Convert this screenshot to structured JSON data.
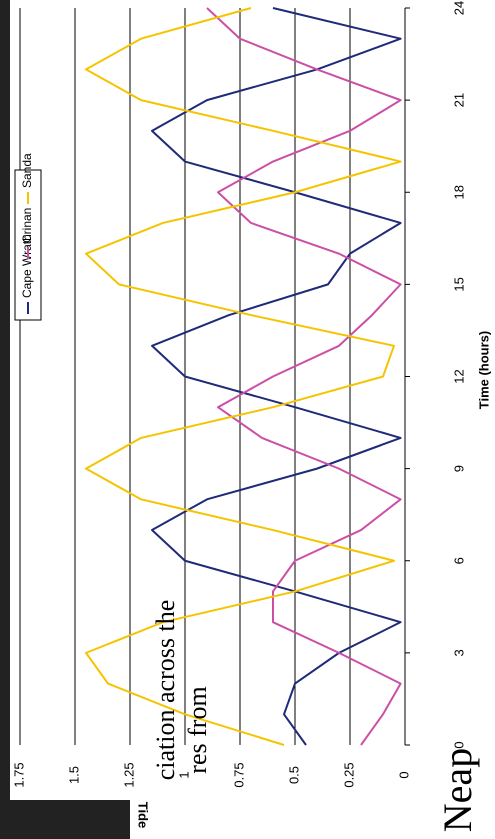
{
  "chart_data": {
    "type": "line",
    "x_label": "Time (hours)",
    "y_label": "Tide",
    "x": [
      0,
      1,
      2,
      3,
      4,
      5,
      6,
      7,
      8,
      9,
      10,
      11,
      12,
      13,
      14,
      15,
      16,
      17,
      18,
      19,
      20,
      21,
      22,
      23,
      24
    ],
    "xlim": [
      0,
      24
    ],
    "xticks": [
      0,
      3,
      6,
      9,
      12,
      15,
      18,
      21,
      24
    ],
    "ylim": [
      0,
      1.75
    ],
    "yticks": [
      0,
      0.25,
      0.5,
      0.75,
      1,
      1.25,
      1.5,
      1.75
    ],
    "grid": true,
    "series": [
      {
        "name": "Cape Wrath",
        "color": "#1f2a78",
        "values": [
          0.45,
          0.55,
          0.5,
          0.3,
          0.02,
          0.5,
          1.0,
          1.15,
          0.9,
          0.4,
          0.02,
          0.5,
          1.0,
          1.15,
          0.8,
          0.35,
          0.25,
          0.02,
          0.5,
          1.0,
          1.15,
          0.9,
          0.4,
          0.02,
          0.6
        ]
      },
      {
        "name": "Crinan",
        "color": "#cc4fa6",
        "values": [
          0.2,
          0.1,
          0.02,
          0.3,
          0.6,
          0.6,
          0.5,
          0.2,
          0.02,
          0.3,
          0.65,
          0.85,
          0.6,
          0.3,
          0.15,
          0.02,
          0.3,
          0.7,
          0.85,
          0.6,
          0.25,
          0.02,
          0.4,
          0.75,
          0.9
        ]
      },
      {
        "name": "Sanda",
        "color": "#f5c400",
        "values": [
          0.55,
          1.0,
          1.35,
          1.45,
          1.1,
          0.5,
          0.05,
          0.6,
          1.2,
          1.45,
          1.2,
          0.6,
          0.1,
          0.05,
          0.7,
          1.3,
          1.45,
          1.1,
          0.5,
          0.02,
          0.6,
          1.2,
          1.45,
          1.2,
          0.7
        ]
      }
    ]
  },
  "overlay_texts": [
    "ciation across the",
    "res from",
    "Neap"
  ]
}
